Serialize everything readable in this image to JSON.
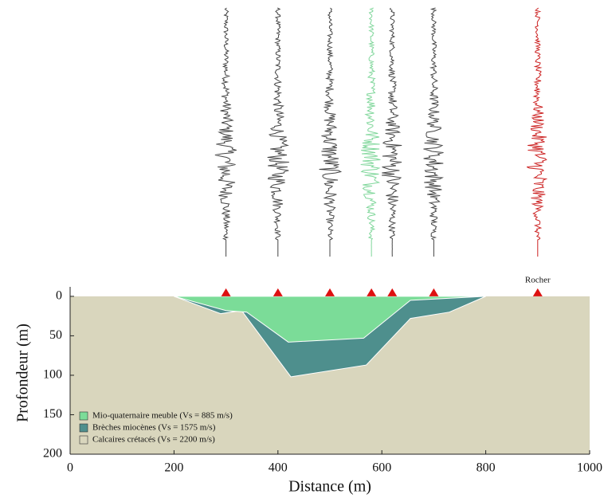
{
  "chart_data": {
    "type": "cross-section",
    "xlabel": "Distance (m)",
    "ylabel": "Profondeur (m)",
    "xlim": [
      0,
      1000
    ],
    "xticks": [
      0,
      200,
      400,
      600,
      800,
      1000
    ],
    "ylim": [
      200,
      -12
    ],
    "yticks": [
      0,
      50,
      100,
      150,
      200
    ],
    "background_color": "#d9d6bd",
    "layers": [
      {
        "name": "Brèches miocènes (Vs = 1575 m/s)",
        "color": "#4e8f8d",
        "x": [
          200,
          290,
          330,
          425,
          570,
          655,
          730,
          800
        ],
        "depth": [
          0,
          22,
          18,
          102,
          87,
          28,
          20,
          0
        ]
      },
      {
        "name": "Mio-quaternaire meuble (Vs = 885 m/s)",
        "color": "#7bdc98",
        "x": [
          200,
          300,
          340,
          420,
          565,
          655,
          800
        ],
        "depth": [
          0,
          18,
          20,
          58,
          53,
          5,
          0
        ]
      }
    ],
    "legend": [
      "Mio-quaternaire meuble (Vs = 885 m/s)",
      "Brèches miocènes (Vs = 1575 m/s)",
      "Calcaires crétacés (Vs = 2200 m/s)"
    ],
    "stations": [
      300,
      400,
      500,
      580,
      620,
      700,
      900
    ],
    "trace_colors": [
      "#444444",
      "#444444",
      "#444444",
      "#7fd69a",
      "#444444",
      "#444444",
      "#cc2222"
    ],
    "station_color": "#dd1111",
    "annotation": {
      "text": "Rocher",
      "x": 900
    }
  }
}
